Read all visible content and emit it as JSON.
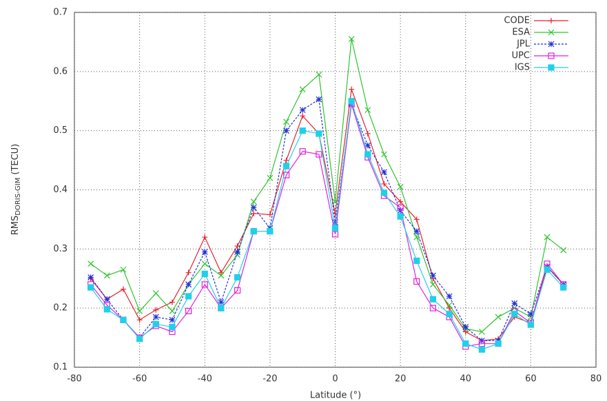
{
  "chart_data": {
    "type": "line",
    "x_label": "Latitude (°)",
    "y_label": "RMS",
    "y_label_subscript": "DORIS-GIM",
    "y_label_unit": "(TECU)",
    "x": [
      -75,
      -70,
      -65,
      -60,
      -55,
      -50,
      -45,
      -40,
      -35,
      -30,
      -25,
      -20,
      -15,
      -10,
      -5,
      0,
      5,
      10,
      15,
      20,
      25,
      30,
      35,
      40,
      45,
      50,
      55,
      60,
      65,
      70
    ],
    "xlim": [
      -80,
      80
    ],
    "xticks": [
      -80,
      -60,
      -40,
      -20,
      0,
      20,
      40,
      60,
      80
    ],
    "ylim": [
      0.1,
      0.7
    ],
    "yticks": [
      0.1,
      0.2,
      0.3,
      0.4,
      0.5,
      0.6,
      0.7
    ],
    "grid": true,
    "legend": "top-right",
    "series": [
      {
        "name": "CODE",
        "color": "#e8202a",
        "marker": "plus",
        "dash": false,
        "values": [
          0.25,
          0.215,
          0.232,
          0.18,
          0.197,
          0.21,
          0.26,
          0.32,
          0.26,
          0.305,
          0.36,
          0.358,
          0.45,
          0.525,
          0.495,
          0.36,
          0.57,
          0.495,
          0.41,
          0.38,
          0.35,
          0.25,
          0.2,
          0.16,
          0.145,
          0.148,
          0.185,
          0.175,
          0.27,
          0.24
        ]
      },
      {
        "name": "ESA",
        "color": "#2ec42e",
        "marker": "cross",
        "dash": false,
        "values": [
          0.275,
          0.255,
          0.265,
          0.195,
          0.225,
          0.195,
          0.24,
          0.275,
          0.255,
          0.29,
          0.38,
          0.42,
          0.515,
          0.57,
          0.595,
          0.38,
          0.655,
          0.535,
          0.46,
          0.405,
          0.32,
          0.24,
          0.205,
          0.165,
          0.16,
          0.185,
          0.2,
          0.185,
          0.32,
          0.298
        ]
      },
      {
        "name": "JPL",
        "color": "#2030d8",
        "marker": "star",
        "dash": true,
        "values": [
          0.252,
          0.215,
          0.18,
          0.15,
          0.185,
          0.18,
          0.24,
          0.295,
          0.21,
          0.295,
          0.37,
          0.335,
          0.5,
          0.535,
          0.553,
          0.345,
          0.545,
          0.475,
          0.43,
          0.365,
          0.33,
          0.255,
          0.22,
          0.168,
          0.145,
          0.145,
          0.208,
          0.19,
          0.27,
          0.24
        ]
      },
      {
        "name": "UPC",
        "color": "#e020e0",
        "marker": "open-square",
        "dash": false,
        "values": [
          0.24,
          0.205,
          0.18,
          0.15,
          0.17,
          0.16,
          0.195,
          0.24,
          0.2,
          0.23,
          0.33,
          0.33,
          0.425,
          0.465,
          0.46,
          0.325,
          0.545,
          0.455,
          0.39,
          0.37,
          0.245,
          0.2,
          0.185,
          0.135,
          0.14,
          0.14,
          0.195,
          0.175,
          0.275,
          0.24
        ]
      },
      {
        "name": "IGS",
        "color": "#20d0e8",
        "marker": "filled-square",
        "dash": false,
        "values": [
          0.235,
          0.198,
          0.18,
          0.148,
          0.173,
          0.168,
          0.22,
          0.258,
          0.2,
          0.252,
          0.33,
          0.33,
          0.44,
          0.5,
          0.495,
          0.335,
          0.55,
          0.46,
          0.395,
          0.355,
          0.28,
          0.215,
          0.19,
          0.14,
          0.13,
          0.14,
          0.19,
          0.172,
          0.265,
          0.235
        ]
      }
    ]
  }
}
